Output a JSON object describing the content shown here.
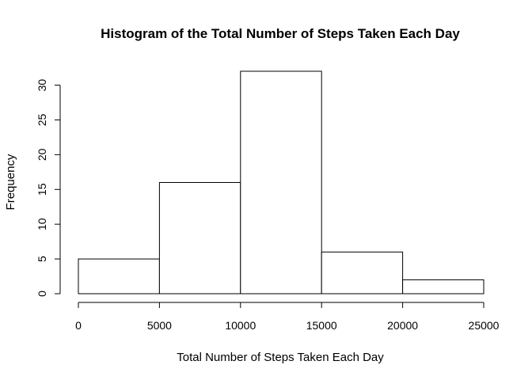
{
  "chart_data": {
    "type": "bar",
    "title": "Histogram of the Total Number of Steps Taken Each Day",
    "xlabel": "Total Number of Steps Taken Each Day",
    "ylabel": "Frequency",
    "bins": [
      {
        "start": 0,
        "end": 5000,
        "count": 5
      },
      {
        "start": 5000,
        "end": 10000,
        "count": 16
      },
      {
        "start": 10000,
        "end": 15000,
        "count": 32
      },
      {
        "start": 15000,
        "end": 20000,
        "count": 6
      },
      {
        "start": 20000,
        "end": 25000,
        "count": 2
      }
    ],
    "x_ticks": [
      0,
      5000,
      10000,
      15000,
      20000,
      25000
    ],
    "y_ticks": [
      0,
      5,
      10,
      15,
      20,
      25,
      30
    ],
    "xlim": [
      0,
      25000
    ],
    "ylim": [
      0,
      32
    ],
    "grid": false,
    "legend": "none",
    "bar_fill": "#ffffff",
    "bar_stroke": "#000000"
  }
}
